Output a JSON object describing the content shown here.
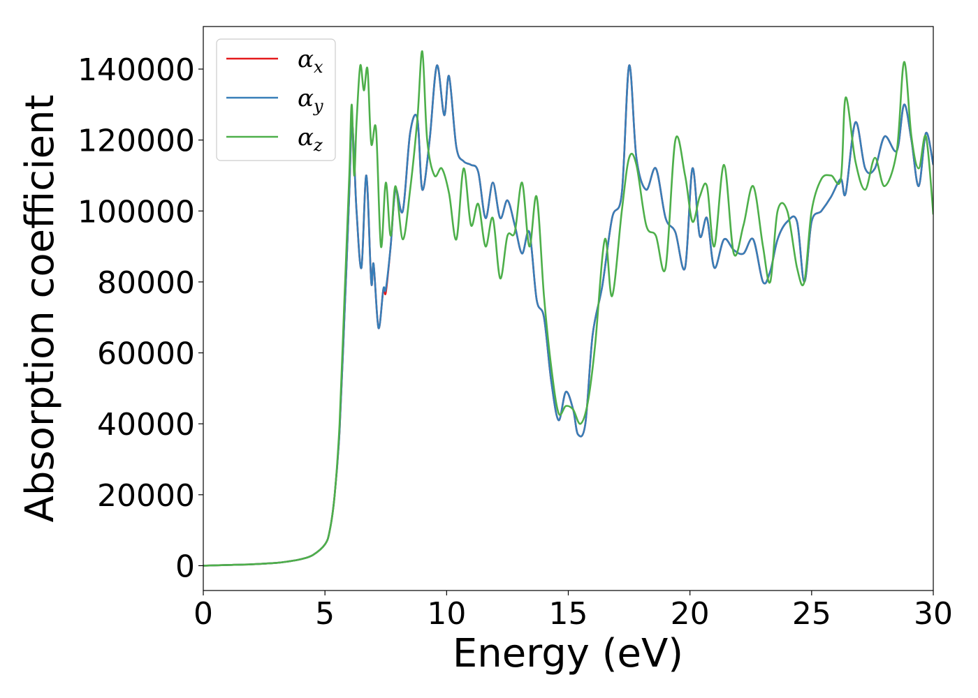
{
  "chart_data": {
    "type": "line",
    "xlabel": "Energy (eV)",
    "ylabel": "Absorption coefficient",
    "xlim": [
      0,
      30
    ],
    "ylim": [
      -7000,
      152000
    ],
    "xticks": [
      "0",
      "5",
      "10",
      "15",
      "20",
      "25",
      "30"
    ],
    "yticks": [
      "0",
      "20000",
      "40000",
      "60000",
      "80000",
      "100000",
      "120000",
      "140000"
    ],
    "grid": false,
    "legend_position": "top-left",
    "series": [
      {
        "name": "αx",
        "legend_base": "α",
        "legend_sub": "x",
        "color": "#e41a1c",
        "x": [
          0,
          1,
          2,
          3,
          3.5,
          4,
          4.5,
          5,
          5.2,
          5.4,
          5.6,
          5.8,
          6.0,
          6.1,
          6.2,
          6.3,
          6.5,
          6.7,
          6.9,
          7.0,
          7.2,
          7.4,
          7.5,
          7.7,
          7.9,
          8.2,
          8.5,
          8.8,
          9.0,
          9.3,
          9.6,
          9.9,
          10.1,
          10.4,
          10.7,
          11.0,
          11.3,
          11.6,
          11.9,
          12.2,
          12.5,
          12.8,
          13.1,
          13.4,
          13.7,
          14.0,
          14.3,
          14.6,
          14.9,
          15.2,
          15.4,
          15.7,
          16.0,
          16.4,
          16.8,
          17.2,
          17.5,
          17.8,
          18.2,
          18.6,
          19.0,
          19.4,
          19.8,
          20.1,
          20.4,
          20.7,
          21.0,
          21.4,
          21.8,
          22.2,
          22.6,
          23.0,
          23.3,
          23.6,
          24.0,
          24.4,
          24.7,
          25.0,
          25.4,
          25.8,
          26.2,
          26.4,
          26.8,
          27.2,
          27.6,
          28.0,
          28.5,
          28.8,
          29.1,
          29.4,
          29.7,
          30.0
        ],
        "y": [
          0,
          200,
          400,
          800,
          1200,
          1800,
          3000,
          6000,
          10000,
          20000,
          38000,
          70000,
          105000,
          125000,
          115000,
          100000,
          84000,
          110000,
          80000,
          85000,
          67000,
          78000,
          77000,
          90000,
          106000,
          100000,
          122000,
          126000,
          106000,
          120000,
          141000,
          127000,
          138000,
          118000,
          114000,
          113000,
          111000,
          98000,
          108000,
          98000,
          103000,
          96000,
          88000,
          94000,
          75000,
          70000,
          52000,
          41000,
          49000,
          44000,
          37000,
          40000,
          65000,
          79000,
          98000,
          105000,
          141000,
          115000,
          106000,
          112000,
          98000,
          94000,
          84000,
          112000,
          93000,
          98000,
          84000,
          92000,
          89000,
          88000,
          92000,
          80000,
          83000,
          92000,
          97000,
          97000,
          80000,
          97000,
          100000,
          104000,
          109000,
          105000,
          125000,
          112000,
          112000,
          121000,
          117000,
          130000,
          120000,
          107000,
          122000,
          113000
        ]
      },
      {
        "name": "αy",
        "legend_base": "α",
        "legend_sub": "y",
        "color": "#377eb8",
        "x": [
          0,
          1,
          2,
          3,
          3.5,
          4,
          4.5,
          5,
          5.2,
          5.4,
          5.6,
          5.8,
          6.0,
          6.1,
          6.2,
          6.3,
          6.5,
          6.7,
          6.9,
          7.0,
          7.2,
          7.4,
          7.5,
          7.7,
          7.9,
          8.2,
          8.5,
          8.8,
          9.0,
          9.3,
          9.6,
          9.9,
          10.1,
          10.4,
          10.7,
          11.0,
          11.3,
          11.6,
          11.9,
          12.2,
          12.5,
          12.8,
          13.1,
          13.4,
          13.7,
          14.0,
          14.3,
          14.6,
          14.9,
          15.2,
          15.4,
          15.7,
          16.0,
          16.4,
          16.8,
          17.2,
          17.5,
          17.8,
          18.2,
          18.6,
          19.0,
          19.4,
          19.8,
          20.1,
          20.4,
          20.7,
          21.0,
          21.4,
          21.8,
          22.2,
          22.6,
          23.0,
          23.3,
          23.6,
          24.0,
          24.4,
          24.7,
          25.0,
          25.4,
          25.8,
          26.2,
          26.4,
          26.8,
          27.2,
          27.6,
          28.0,
          28.5,
          28.8,
          29.1,
          29.4,
          29.7,
          30.0
        ],
        "y": [
          0,
          200,
          400,
          800,
          1200,
          1800,
          3000,
          6000,
          10000,
          20000,
          38000,
          70000,
          105000,
          125000,
          115000,
          100000,
          84000,
          110000,
          80000,
          85000,
          67000,
          78000,
          78000,
          90000,
          106000,
          100000,
          122000,
          126000,
          106000,
          120000,
          141000,
          127000,
          138000,
          118000,
          114000,
          113000,
          111000,
          98000,
          108000,
          98000,
          103000,
          96000,
          88000,
          94000,
          75000,
          70000,
          52000,
          41000,
          49000,
          44000,
          37000,
          40000,
          65000,
          79000,
          98000,
          105000,
          141000,
          115000,
          106000,
          112000,
          98000,
          94000,
          84000,
          112000,
          93000,
          98000,
          84000,
          92000,
          89000,
          88000,
          92000,
          80000,
          83000,
          92000,
          97000,
          97000,
          80000,
          97000,
          100000,
          104000,
          109000,
          105000,
          125000,
          112000,
          112000,
          121000,
          117000,
          130000,
          120000,
          107000,
          122000,
          113000
        ]
      },
      {
        "name": "αz",
        "legend_base": "α",
        "legend_sub": "z",
        "color": "#4daf4a",
        "x": [
          0,
          1,
          2,
          3,
          3.5,
          4,
          4.5,
          5,
          5.2,
          5.4,
          5.6,
          5.8,
          6.0,
          6.1,
          6.2,
          6.3,
          6.45,
          6.6,
          6.75,
          6.9,
          7.1,
          7.3,
          7.5,
          7.7,
          7.9,
          8.2,
          8.5,
          8.8,
          9.0,
          9.2,
          9.5,
          9.8,
          10.1,
          10.4,
          10.7,
          11.0,
          11.3,
          11.6,
          11.9,
          12.2,
          12.5,
          12.8,
          13.1,
          13.4,
          13.7,
          14.0,
          14.3,
          14.6,
          14.9,
          15.2,
          15.5,
          15.8,
          16.1,
          16.5,
          16.8,
          17.2,
          17.5,
          17.8,
          18.2,
          18.6,
          19.0,
          19.4,
          19.8,
          20.1,
          20.4,
          20.7,
          21.0,
          21.4,
          21.8,
          22.2,
          22.6,
          23.0,
          23.3,
          23.6,
          24.0,
          24.4,
          24.7,
          25.0,
          25.4,
          25.8,
          26.2,
          26.4,
          26.8,
          27.2,
          27.6,
          28.0,
          28.5,
          28.8,
          29.1,
          29.4,
          29.7,
          30.0
        ],
        "y": [
          0,
          200,
          400,
          800,
          1200,
          1800,
          3000,
          6000,
          10000,
          20000,
          40000,
          75000,
          110000,
          130000,
          110000,
          125000,
          141000,
          134000,
          140000,
          119000,
          123000,
          90000,
          108000,
          93000,
          107000,
          92000,
          106000,
          126000,
          145000,
          120000,
          110000,
          112000,
          105000,
          92000,
          112000,
          96000,
          102000,
          90000,
          98000,
          81000,
          93000,
          94000,
          108000,
          90000,
          104000,
          76000,
          56000,
          43000,
          45000,
          44000,
          40000,
          46000,
          62000,
          92000,
          76000,
          100000,
          115000,
          113000,
          96000,
          93000,
          84000,
          120000,
          110000,
          97000,
          104000,
          107000,
          90000,
          113000,
          88000,
          96000,
          107000,
          90000,
          80000,
          100000,
          100000,
          84000,
          80000,
          100000,
          109000,
          110000,
          109000,
          132000,
          114000,
          106000,
          115000,
          107000,
          117000,
          142000,
          121000,
          112000,
          121000,
          99000
        ]
      }
    ]
  }
}
